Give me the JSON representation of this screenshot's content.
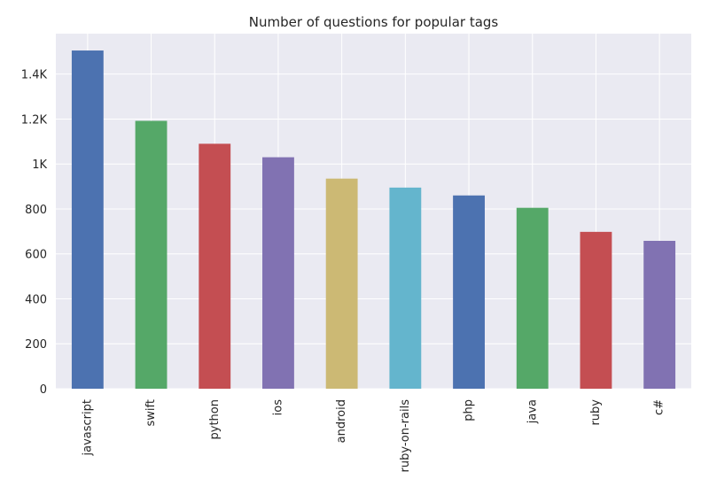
{
  "chart_data": {
    "type": "bar",
    "title": "Number of questions for popular tags",
    "xlabel": "",
    "ylabel": "",
    "categories": [
      "javascript",
      "swift",
      "python",
      "ios",
      "android",
      "ruby-on-rails",
      "php",
      "java",
      "ruby",
      "c#"
    ],
    "values": [
      1505,
      1192,
      1090,
      1030,
      935,
      895,
      860,
      805,
      698,
      658
    ],
    "ylim": [
      0,
      1580
    ],
    "yticks": [
      0,
      200,
      400,
      600,
      800,
      1000,
      1200,
      1400
    ],
    "ytick_labels": [
      "0",
      "200",
      "400",
      "600",
      "800",
      "1K",
      "1.2K",
      "1.4K"
    ],
    "grid": true,
    "background": "#eaeaf2",
    "colors": [
      "#4c72b0",
      "#55a868",
      "#c44e52",
      "#8172b2",
      "#ccb974",
      "#64b5cd",
      "#4c72b0",
      "#55a868",
      "#c44e52",
      "#8172b2"
    ]
  }
}
